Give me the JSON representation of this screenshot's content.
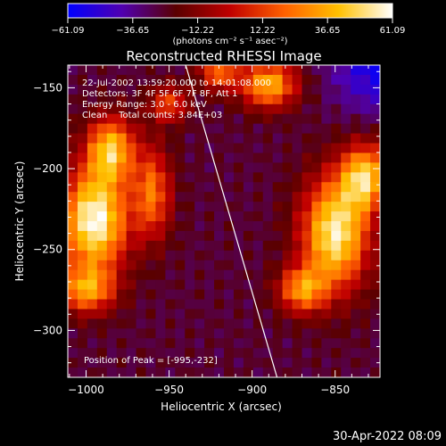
{
  "chart_data": {
    "type": "heatmap",
    "title": "Reconstructed RHESSI Image",
    "xlabel": "Heliocentric X (arcsec)",
    "ylabel": "Heliocentric Y (arcsec)",
    "xlim": [
      -1011,
      -823
    ],
    "ylim": [
      -329,
      -136
    ],
    "x_ticks": [
      -1000,
      -950,
      -900,
      -850
    ],
    "y_ticks": [
      -150,
      -200,
      -250,
      -300
    ],
    "x_tick_labels": [
      "−1000",
      "−950",
      "−900",
      "−850"
    ],
    "y_tick_labels": [
      "−150",
      "−200",
      "−250",
      "−300"
    ],
    "colorbar": {
      "range": [
        -61.09,
        61.09
      ],
      "ticks": [
        -61.09,
        -36.65,
        -12.22,
        12.22,
        36.65,
        61.09
      ],
      "tick_labels": [
        "−61.09",
        "−36.65",
        "−12.22",
        "12.22",
        "36.65",
        "61.09"
      ],
      "unit_label": "(photons cm⁻² s⁻¹ asec⁻²)",
      "colors": [
        "#0000ff",
        "#5000b0",
        "#5a0000",
        "#c00000",
        "#ff6000",
        "#ffc000",
        "#ffffff"
      ]
    },
    "info_lines": [
      "22-Jul-2002 13:59:20.000 to 14:01:08.000",
      "Detectors: 3F 4F 5F 6F 7F 8F, Att 1",
      "Energy Range: 3.0 - 6.0 keV",
      "Clean    Total counts: 3.84E+03"
    ],
    "peak_label": "Position of Peak = [-995,-232]",
    "peak": [
      -995,
      -232
    ],
    "limb_line": [
      [
        -940,
        -136
      ],
      [
        -885,
        -329
      ]
    ],
    "sources": [
      {
        "x": -995,
        "y": -232,
        "amp": 61,
        "sx": 14,
        "sy": 22
      },
      {
        "x": -985,
        "y": -188,
        "amp": 40,
        "sx": 10,
        "sy": 14
      },
      {
        "x": -1000,
        "y": -275,
        "amp": 28,
        "sx": 12,
        "sy": 10
      },
      {
        "x": -960,
        "y": -215,
        "amp": 22,
        "sx": 8,
        "sy": 20
      },
      {
        "x": -850,
        "y": -240,
        "amp": 55,
        "sx": 14,
        "sy": 24
      },
      {
        "x": -832,
        "y": -205,
        "amp": 42,
        "sx": 10,
        "sy": 14
      },
      {
        "x": -870,
        "y": -275,
        "amp": 28,
        "sx": 10,
        "sy": 10
      },
      {
        "x": -890,
        "y": -148,
        "amp": 38,
        "sx": 12,
        "sy": 10
      },
      {
        "x": -920,
        "y": -140,
        "amp": 22,
        "sx": 8,
        "sy": 8
      },
      {
        "x": -950,
        "y": -160,
        "amp": 14,
        "sx": 8,
        "sy": 8
      }
    ]
  },
  "timestamp": "30-Apr-2022 08:09"
}
